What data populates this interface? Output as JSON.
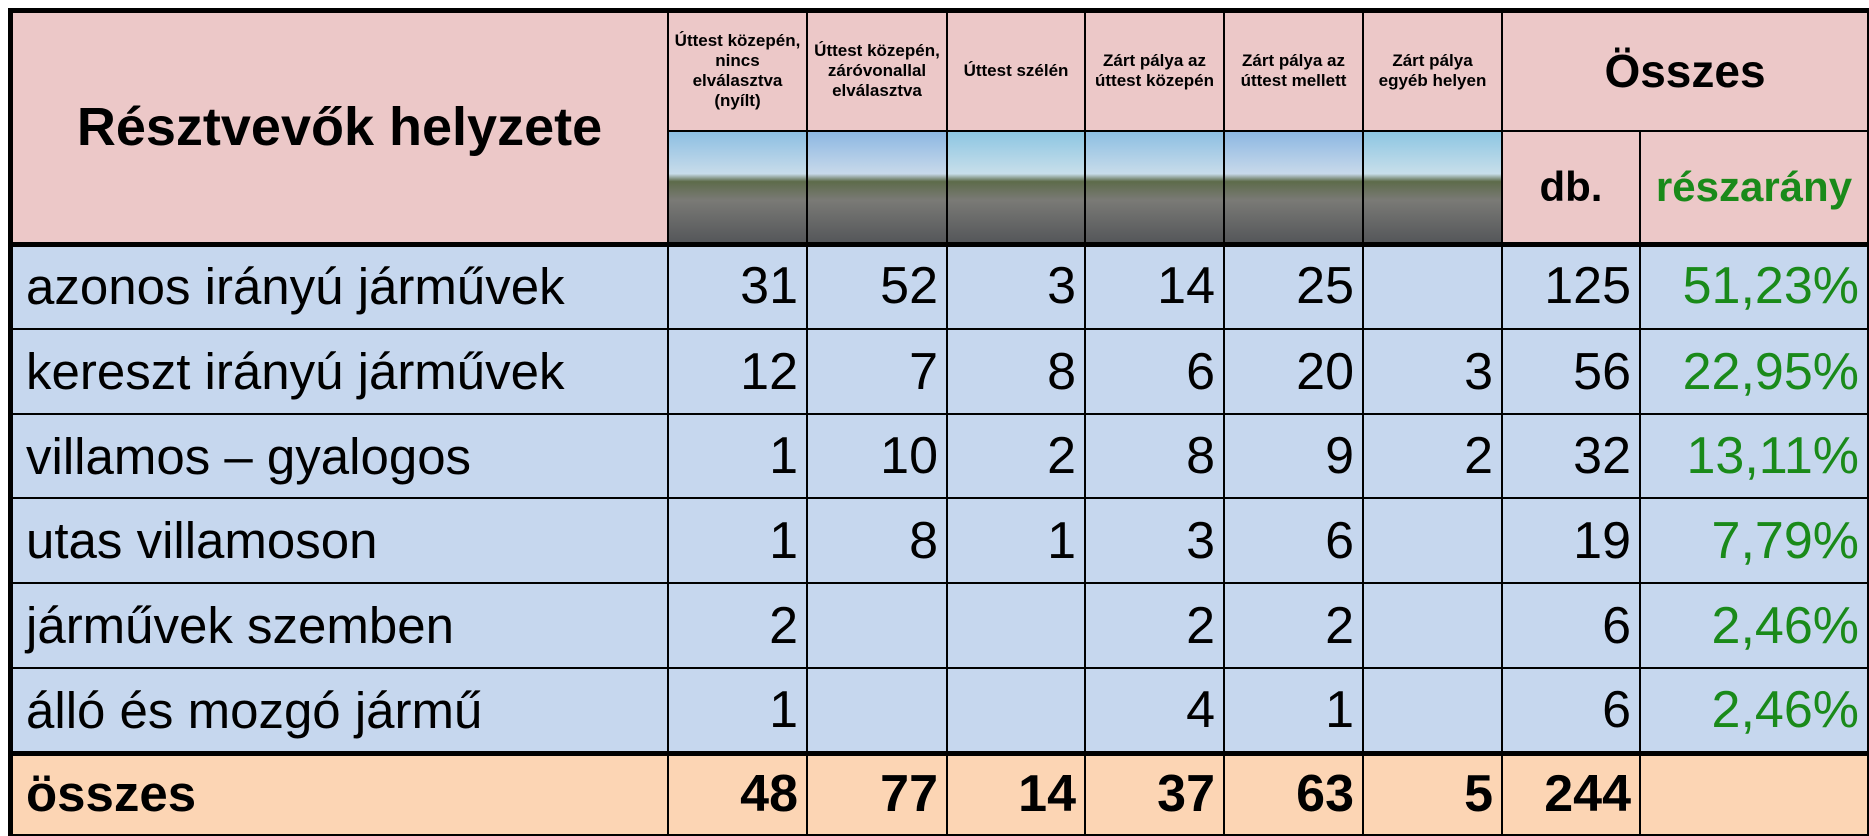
{
  "header": {
    "title": "Résztvevők helyzete",
    "columns": [
      "Úttest közepén, nincs elválasztva (nyílt)",
      "Úttest közepén, záróvonallal elválasztva",
      "Úttest szélén",
      "Zárt pálya az úttest közepén",
      "Zárt pálya az úttest mellett",
      "Zárt pálya egyéb helyen"
    ],
    "total_heading": "Összes",
    "count_heading": "db.",
    "share_heading": "részarány"
  },
  "rows": [
    {
      "label": "azonos irányú járművek",
      "values": [
        31,
        52,
        3,
        14,
        25,
        null
      ],
      "count": 125,
      "share": "51,23%"
    },
    {
      "label": "kereszt irányú járművek",
      "values": [
        12,
        7,
        8,
        6,
        20,
        3
      ],
      "count": 56,
      "share": "22,95%"
    },
    {
      "label": "villamos – gyalogos",
      "values": [
        1,
        10,
        2,
        8,
        9,
        2
      ],
      "count": 32,
      "share": "13,11%"
    },
    {
      "label": "utas villamoson",
      "values": [
        1,
        8,
        1,
        3,
        6,
        null
      ],
      "count": 19,
      "share": "7,79%"
    },
    {
      "label": "járművek szemben",
      "values": [
        2,
        null,
        null,
        2,
        2,
        null
      ],
      "count": 6,
      "share": "2,46%"
    },
    {
      "label": "álló és mozgó jármű",
      "values": [
        1,
        null,
        null,
        4,
        1,
        null
      ],
      "count": 6,
      "share": "2,46%"
    }
  ],
  "totals": {
    "label": "összes",
    "values": [
      48,
      77,
      14,
      37,
      63,
      5
    ],
    "count": 244
  }
}
